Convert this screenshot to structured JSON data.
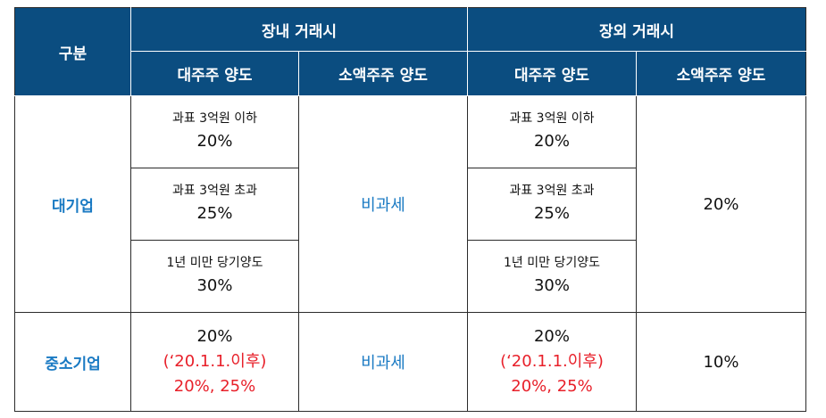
{
  "header": {
    "category": "구분",
    "onmarket": "장내 거래시",
    "offmarket": "장외 거래시",
    "major": "대주주 양도",
    "minor": "소액주주 양도"
  },
  "rows": {
    "large": {
      "label": "대기업",
      "on_major": [
        {
          "cond": "과표 3억원 이하",
          "rate": "20%"
        },
        {
          "cond": "과표 3억원 초과",
          "rate": "25%"
        },
        {
          "cond": "1년 미만 당기양도",
          "rate": "30%"
        }
      ],
      "on_minor": "비과세",
      "off_major": [
        {
          "cond": "과표 3억원 이하",
          "rate": "20%"
        },
        {
          "cond": "과표 3억원 초과",
          "rate": "25%"
        },
        {
          "cond": "1년 미만 당기양도",
          "rate": "30%"
        }
      ],
      "off_minor": "20%"
    },
    "sme": {
      "label": "중소기업",
      "on_major": {
        "rate": "20%",
        "note": "(‘20.1.1.이후)",
        "new_rate": "20%, 25%"
      },
      "on_minor": "비과세",
      "off_major": {
        "rate": "20%",
        "note": "(‘20.1.1.이후)",
        "new_rate": "20%, 25%"
      },
      "off_minor": "10%"
    }
  }
}
